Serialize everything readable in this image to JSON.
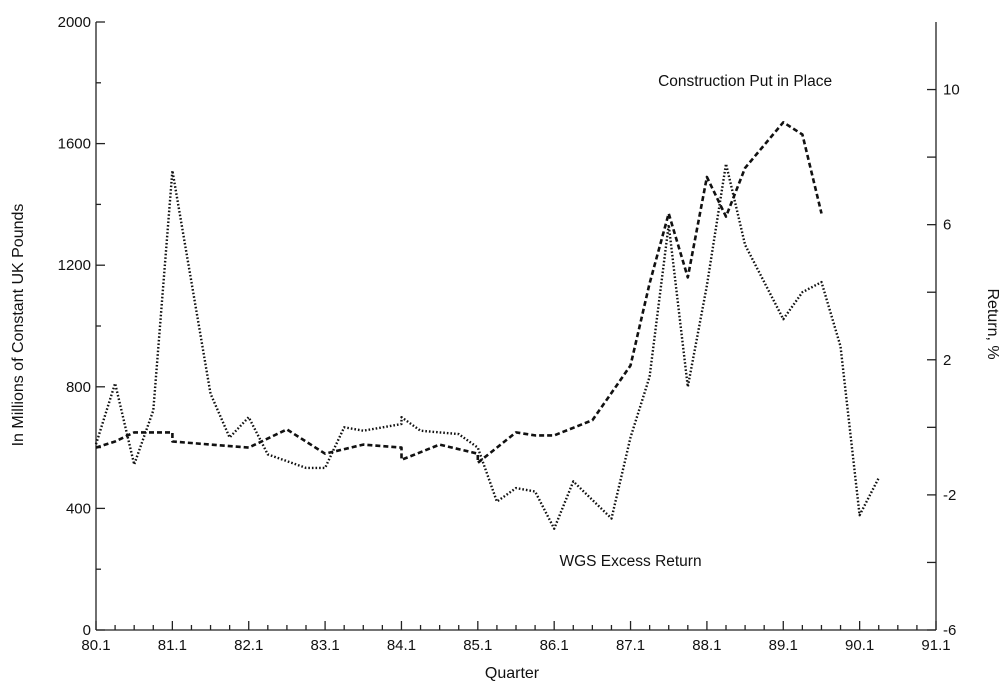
{
  "chart_data": {
    "type": "line",
    "title": "",
    "xlabel": "Quarter",
    "ylabel": "In Millions of Constant UK Pounds",
    "y2label": "Return, %",
    "xlim": [
      80.1,
      91.1
    ],
    "ylim": [
      0,
      2000
    ],
    "y2lim": [
      -6,
      12
    ],
    "x_ticks": [
      "80.1",
      "81.1",
      "82.1",
      "83.1",
      "84.1",
      "85.1",
      "86.1",
      "87.1",
      "88.1",
      "89.1",
      "90.1",
      "91.1"
    ],
    "y_ticks": [
      0,
      400,
      800,
      1200,
      1600,
      2000
    ],
    "y2_ticks": [
      -6,
      -2,
      2,
      6,
      10
    ],
    "grid": false,
    "legend": "none",
    "annotations": [
      {
        "text": "Construction Put in Place",
        "x": 88.3,
        "y": 1790
      },
      {
        "text": "WGS Excess Return",
        "x": 85.9,
        "y": 210
      }
    ],
    "series": [
      {
        "style": "dashed",
        "axis": "left",
        "x": [
          80.1,
          80.2,
          80.35,
          80.5,
          81.1,
          82.1,
          82.3,
          83.1,
          83.3,
          83.5,
          84.1,
          84.3,
          84.5,
          85.1,
          85.3,
          85.4,
          86.1,
          86.3,
          86.4,
          87.1,
          87.2,
          87.3,
          87.4,
          88.1,
          88.2,
          88.3,
          89.1,
          89.2,
          89.3
        ],
        "values": [
          600,
          620,
          650,
          650,
          620,
          600,
          660,
          580,
          610,
          600,
          560,
          610,
          580,
          550,
          650,
          640,
          640,
          690,
          780,
          870,
          1140,
          1370,
          1160,
          1490,
          1360,
          1520,
          1670,
          1630,
          1370
        ]
      },
      {
        "style": "dotted",
        "axis": "right",
        "x": [
          80.1,
          80.2,
          80.3,
          80.4,
          81.1,
          81.3,
          81.4,
          82.1,
          82.2,
          82.4,
          83.1,
          83.2,
          83.3,
          83.5,
          84.1,
          84.2,
          84.4,
          85.1,
          85.2,
          85.3,
          85.4,
          86.1,
          86.2,
          86.4,
          87.1,
          87.2,
          87.3,
          87.4,
          88.1,
          88.2,
          88.3,
          89.1,
          89.2,
          89.3,
          89.4,
          90.1,
          90.2
        ],
        "values": [
          -0.5,
          1.3,
          -1.1,
          0.5,
          7.6,
          1.0,
          -0.3,
          0.3,
          -0.8,
          -1.2,
          -1.2,
          0.0,
          -0.1,
          0.1,
          0.3,
          -0.1,
          -0.2,
          -0.6,
          -2.2,
          -1.8,
          -1.9,
          -3.0,
          -1.6,
          -2.7,
          -0.3,
          1.5,
          6.0,
          1.2,
          4.2,
          7.8,
          5.4,
          3.2,
          4.0,
          4.3,
          2.4,
          -2.6,
          -1.5
        ]
      }
    ]
  }
}
